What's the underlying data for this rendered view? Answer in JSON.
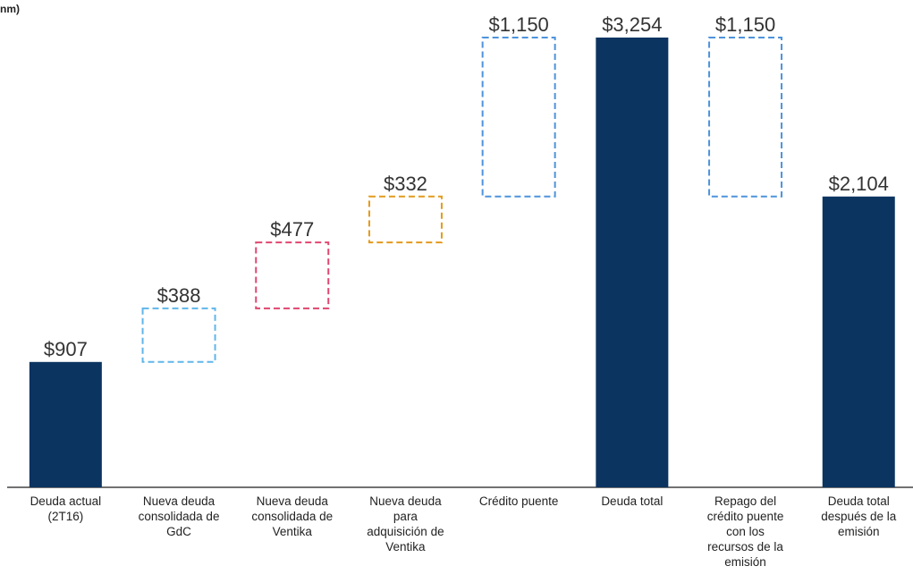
{
  "chart_data": {
    "type": "waterfall",
    "unit_label": "nm)",
    "categories": [
      "Deuda actual\n(2T16)",
      "Nueva deuda\nconsolidada de\nGdC",
      "Nueva deuda\nconsolidada de\nVentika",
      "Nueva deuda\npara\nadquisición de\nVentika",
      "Crédito puente",
      "Deuda total",
      "Repago del\ncrédito puente\ncon los\nrecursos de la\nemisión",
      "Deuda total\ndespués de la\nemisión"
    ],
    "values": [
      907,
      388,
      477,
      332,
      1150,
      3254,
      1150,
      2104
    ],
    "value_labels": [
      "$907",
      "$388",
      "$477",
      "$332",
      "$1,150",
      "$3,254",
      "$1,150",
      "$2,104"
    ],
    "measures": [
      "absolute",
      "increase",
      "increase",
      "increase",
      "increase",
      "total",
      "decrease",
      "total"
    ],
    "colors": [
      "#0b3461",
      "#5fb6ea",
      "#e0466f",
      "#e39a1c",
      "#4d93dc",
      "#0b3461",
      "#4d93dc",
      "#0b3461"
    ]
  }
}
